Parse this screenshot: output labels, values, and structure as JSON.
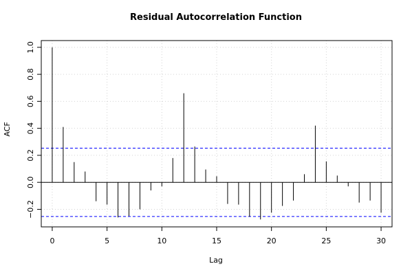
{
  "chart_data": {
    "type": "bar",
    "title": "Residual Autocorrelation Function",
    "xlabel": "Lag",
    "ylabel": "ACF",
    "xlim": [
      -1,
      31
    ],
    "ylim": [
      -0.33,
      1.05
    ],
    "x_ticks": [
      0,
      5,
      10,
      15,
      20,
      25,
      30
    ],
    "y_ticks": [
      -0.2,
      0.0,
      0.2,
      0.4,
      0.6,
      0.8,
      1.0
    ],
    "x_tick_labels": [
      "0",
      "5",
      "10",
      "15",
      "20",
      "25",
      "30"
    ],
    "y_tick_labels": [
      "−0.2",
      "0.0",
      "0.2",
      "0.4",
      "0.6",
      "0.8",
      "1.0"
    ],
    "grid": true,
    "confidence_bounds": [
      0.253,
      -0.253
    ],
    "colors": {
      "bars": "#000000",
      "bounds": "#0000ff",
      "grid": "#d3d3d3"
    },
    "lags": [
      0,
      1,
      2,
      3,
      4,
      5,
      6,
      7,
      8,
      9,
      10,
      11,
      12,
      13,
      14,
      15,
      16,
      17,
      18,
      19,
      20,
      21,
      22,
      23,
      24,
      25,
      26,
      27,
      28,
      29,
      30
    ],
    "values": [
      1.0,
      0.41,
      0.15,
      0.08,
      -0.14,
      -0.165,
      -0.26,
      -0.25,
      -0.2,
      -0.06,
      -0.03,
      0.18,
      0.66,
      0.265,
      0.095,
      0.045,
      -0.16,
      -0.165,
      -0.255,
      -0.275,
      -0.225,
      -0.175,
      -0.135,
      0.06,
      0.42,
      0.155,
      0.05,
      -0.03,
      -0.15,
      -0.135,
      -0.225
    ]
  }
}
